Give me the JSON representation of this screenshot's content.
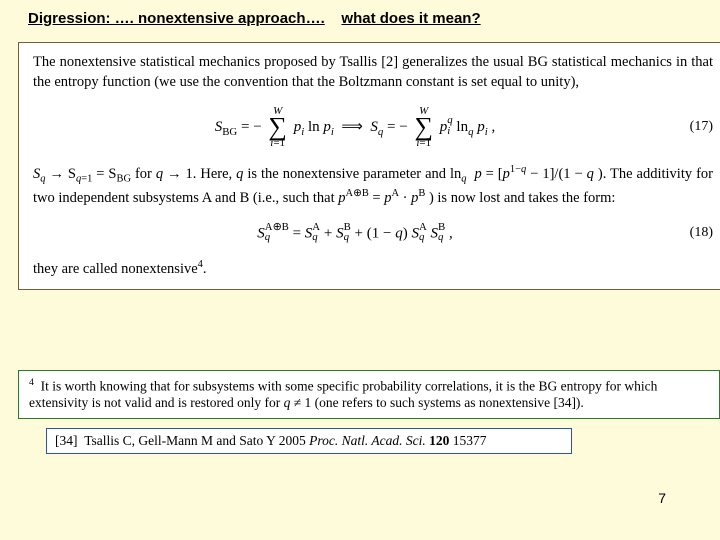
{
  "heading": {
    "part1": "Digression: …. nonextensive approach….",
    "part2": "what does it mean?"
  },
  "main": {
    "intro": "The nonextensive statistical mechanics proposed by Tsallis [2] generalizes the usual BG statistical mechanics in that the entropy function (we use the convention that the Boltzmann constant is set equal to unity),",
    "eq17_num": "(17)",
    "after17_a": "S",
    "after17_b": " → S",
    "after17_c": " = S",
    "after17_d": " for ",
    "after17_e": " → 1. Here, ",
    "after17_f": " is the nonextensive parameter and ln",
    "after17_g": " = [",
    "after17_h": " − 1]/(1 − ",
    "after17_i": "). The additivity for two independent subsystems A and B (i.e., such that ",
    "after17_j": " = ",
    "after17_k": " · ",
    "after17_l": ") is now lost and takes the form:",
    "eq18_num": "(18)",
    "tail": "they are called nonextensive",
    "tail_note_mark": "4",
    "tail_period": "."
  },
  "footnote": {
    "mark": "4",
    "text_a": "It is worth knowing that for subsystems with some specific probability correlations, it is the BG entropy for which extensivity is not valid and is restored only for ",
    "text_b": " ≠ 1 (one refers to such systems as nonextensive [34])."
  },
  "reference": {
    "label": "[34]",
    "authors": "Tsallis C, Gell-Mann M and Sato Y 2005 ",
    "journal": "Proc. Natl. Acad. Sci.",
    "vol": " 120 ",
    "pages": "15377"
  },
  "page_number": "7",
  "colors": {
    "page_bg": "#fdfbd9",
    "main_border": "#7a5c3a",
    "note_border": "#2a7a2a",
    "ref_border": "#2a55a8",
    "box_bg": "#ffffff"
  },
  "typography": {
    "heading_font": "Arial",
    "heading_size_pt": 11,
    "body_font": "Times New Roman",
    "body_size_pt": 11,
    "note_size_pt": 10
  }
}
